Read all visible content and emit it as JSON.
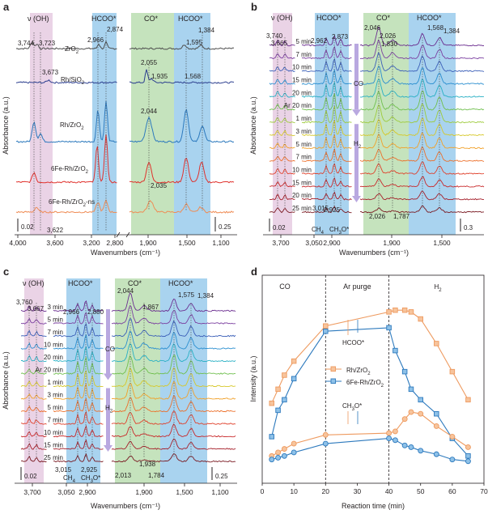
{
  "panels": {
    "a": {
      "label": "a",
      "band_labels": [
        "ν (OH)",
        "HCOO*",
        "CO*",
        "HCOO*"
      ],
      "peaks": [
        "3,744",
        "3,723",
        "2,966",
        "2,874",
        "3,673",
        "2,055",
        "1,935",
        "1,595",
        "1,384",
        "1,568",
        "2,044",
        "2,035",
        "3,622"
      ],
      "sample_labels": [
        "ZrO2",
        "Rh/SiO2",
        "Rh/ZrO2",
        "6Fe-Rh/ZrO2",
        "6Fe-Rh/ZrO2-ns"
      ],
      "scale_left": "0.02",
      "scale_right": "0.25",
      "xticks": [
        "4,000",
        "3,600",
        "3,200",
        "2,800",
        "1,900",
        "1,500",
        "1,100"
      ],
      "xlabel": "Wavenumbers (cm⁻¹)",
      "ylabel": "Absorbance (a.u.)"
    },
    "b": {
      "label": "b",
      "band_labels": [
        "ν (OH)",
        "HCOO*",
        "CO*",
        "HCOO*"
      ],
      "peaks": [
        "3,740",
        "3,665",
        "2,962",
        "2,873",
        "2,046",
        "2,026",
        "1,830",
        "1,568",
        "1,384",
        "3,015",
        "2,925",
        "2,026",
        "1,787"
      ],
      "species": [
        "CH4",
        "CH3O*"
      ],
      "time_labels": [
        "5 min",
        "7 min",
        "10 min",
        "15 min",
        "20 min",
        "Ar 20 min",
        "1 min",
        "3 min",
        "5 min",
        "7 min",
        "10 min",
        "15 min",
        "20 min",
        "25 min"
      ],
      "gas_labels": [
        "CO",
        "H2"
      ],
      "scale_left": "0.02",
      "scale_right": "0.3",
      "xticks": [
        "3,700",
        "3,050",
        "2,900",
        "1,900",
        "1,500"
      ],
      "xlabel": "Wavenumbers (cm⁻¹)",
      "ylabel": "Absorbance (a.u.)"
    },
    "c": {
      "label": "c",
      "band_labels": [
        "ν (OH)",
        "HCOO*",
        "CO*",
        "HCOO*"
      ],
      "peaks": [
        "3,760",
        "3,667",
        "2,966",
        "2,880",
        "2,044",
        "1,867",
        "1,575",
        "1,384",
        "3,015",
        "2,925",
        "2,013",
        "1,938",
        "1,784"
      ],
      "species": [
        "CH4",
        "CH3O*"
      ],
      "time_labels": [
        "3 min",
        "5 min",
        "7 min",
        "10 min",
        "20 min",
        "Ar 20 min",
        "1 min",
        "3 min",
        "5 min",
        "7 min",
        "10 min",
        "15 min",
        "25 min"
      ],
      "gas_labels": [
        "CO",
        "H2"
      ],
      "scale_left": "0.02",
      "scale_right": "0.25",
      "xticks": [
        "3,700",
        "3,050",
        "2,900",
        "1,900",
        "1,500",
        "1,100"
      ],
      "xlabel": "Wavenumbers (cm⁻¹)",
      "ylabel": "Absorbance (a.u.)"
    },
    "d": {
      "label": "d",
      "phase_labels": [
        "CO",
        "Ar purge",
        "H2"
      ],
      "annotations": [
        "HCOO*",
        "CH3O*"
      ],
      "legend": [
        "Rh/ZrO2",
        "6Fe-Rh/ZrO2"
      ],
      "xticks": [
        "0",
        "10",
        "20",
        "30",
        "40",
        "50",
        "60",
        "70"
      ],
      "xlabel": "Reaction time (min)",
      "ylabel": "Intensity (a.u.)"
    }
  },
  "colors": {
    "oh_band": "#ead3e6",
    "hcoo_band": "#a9d3ef",
    "co_band": "#c5e3bd",
    "orange": "#ee9a5f",
    "blue": "#2c79bd",
    "dash": "#444444"
  },
  "chart_data": [
    {
      "type": "line",
      "title": "a",
      "xlabel": "Wavenumbers (cm⁻¹)",
      "ylabel": "Absorbance (a.u.)",
      "series": [
        {
          "name": "ZrO2",
          "values": []
        },
        {
          "name": "Rh/SiO2",
          "values": []
        },
        {
          "name": "Rh/ZrO2",
          "values": []
        },
        {
          "name": "6Fe-Rh/ZrO2",
          "values": []
        },
        {
          "name": "6Fe-Rh/ZrO2-ns",
          "values": []
        }
      ]
    },
    {
      "type": "line",
      "title": "b",
      "xlabel": "Wavenumbers (cm⁻¹)",
      "ylabel": "Absorbance (a.u.)"
    },
    {
      "type": "line",
      "title": "c",
      "xlabel": "Wavenumbers (cm⁻¹)",
      "ylabel": "Absorbance (a.u.)"
    },
    {
      "type": "line",
      "title": "d",
      "xlabel": "Reaction time (min)",
      "ylabel": "Intensity (a.u.)",
      "xlim": [
        0,
        70
      ],
      "x": [
        3,
        5,
        7,
        10,
        20,
        40,
        42,
        45,
        47,
        50,
        55,
        60,
        65
      ],
      "series": [
        {
          "name": "Rh/ZrO2 HCOO*",
          "x": [
            3,
            5,
            7,
            10,
            20,
            40,
            42,
            45,
            47,
            50,
            55,
            60,
            65
          ],
          "values": [
            0.4,
            0.48,
            0.56,
            0.64,
            0.84,
            0.92,
            0.93,
            0.93,
            0.92,
            0.88,
            0.74,
            0.58,
            0.42
          ]
        },
        {
          "name": "6Fe-Rh/ZrO2 HCOO*",
          "x": [
            3,
            5,
            7,
            10,
            20,
            40,
            42,
            45,
            47,
            50,
            55,
            60,
            65
          ],
          "values": [
            0.21,
            0.36,
            0.42,
            0.54,
            0.81,
            0.83,
            0.7,
            0.58,
            0.48,
            0.42,
            0.34,
            0.2,
            0.1
          ]
        },
        {
          "name": "Rh/ZrO2 CH3O*",
          "x": [
            3,
            5,
            7,
            10,
            20,
            40,
            42,
            45,
            47,
            50,
            55,
            60,
            65
          ],
          "values": [
            0.1,
            0.12,
            0.14,
            0.17,
            0.22,
            0.23,
            0.24,
            0.31,
            0.35,
            0.34,
            0.27,
            0.21,
            0.15
          ]
        },
        {
          "name": "6Fe-Rh/ZrO2 CH3O*",
          "x": [
            3,
            5,
            7,
            10,
            20,
            40,
            42,
            45,
            47,
            50,
            55,
            60,
            65
          ],
          "values": [
            0.08,
            0.09,
            0.1,
            0.12,
            0.17,
            0.2,
            0.19,
            0.16,
            0.15,
            0.13,
            0.11,
            0.08,
            0.07
          ]
        }
      ]
    }
  ]
}
